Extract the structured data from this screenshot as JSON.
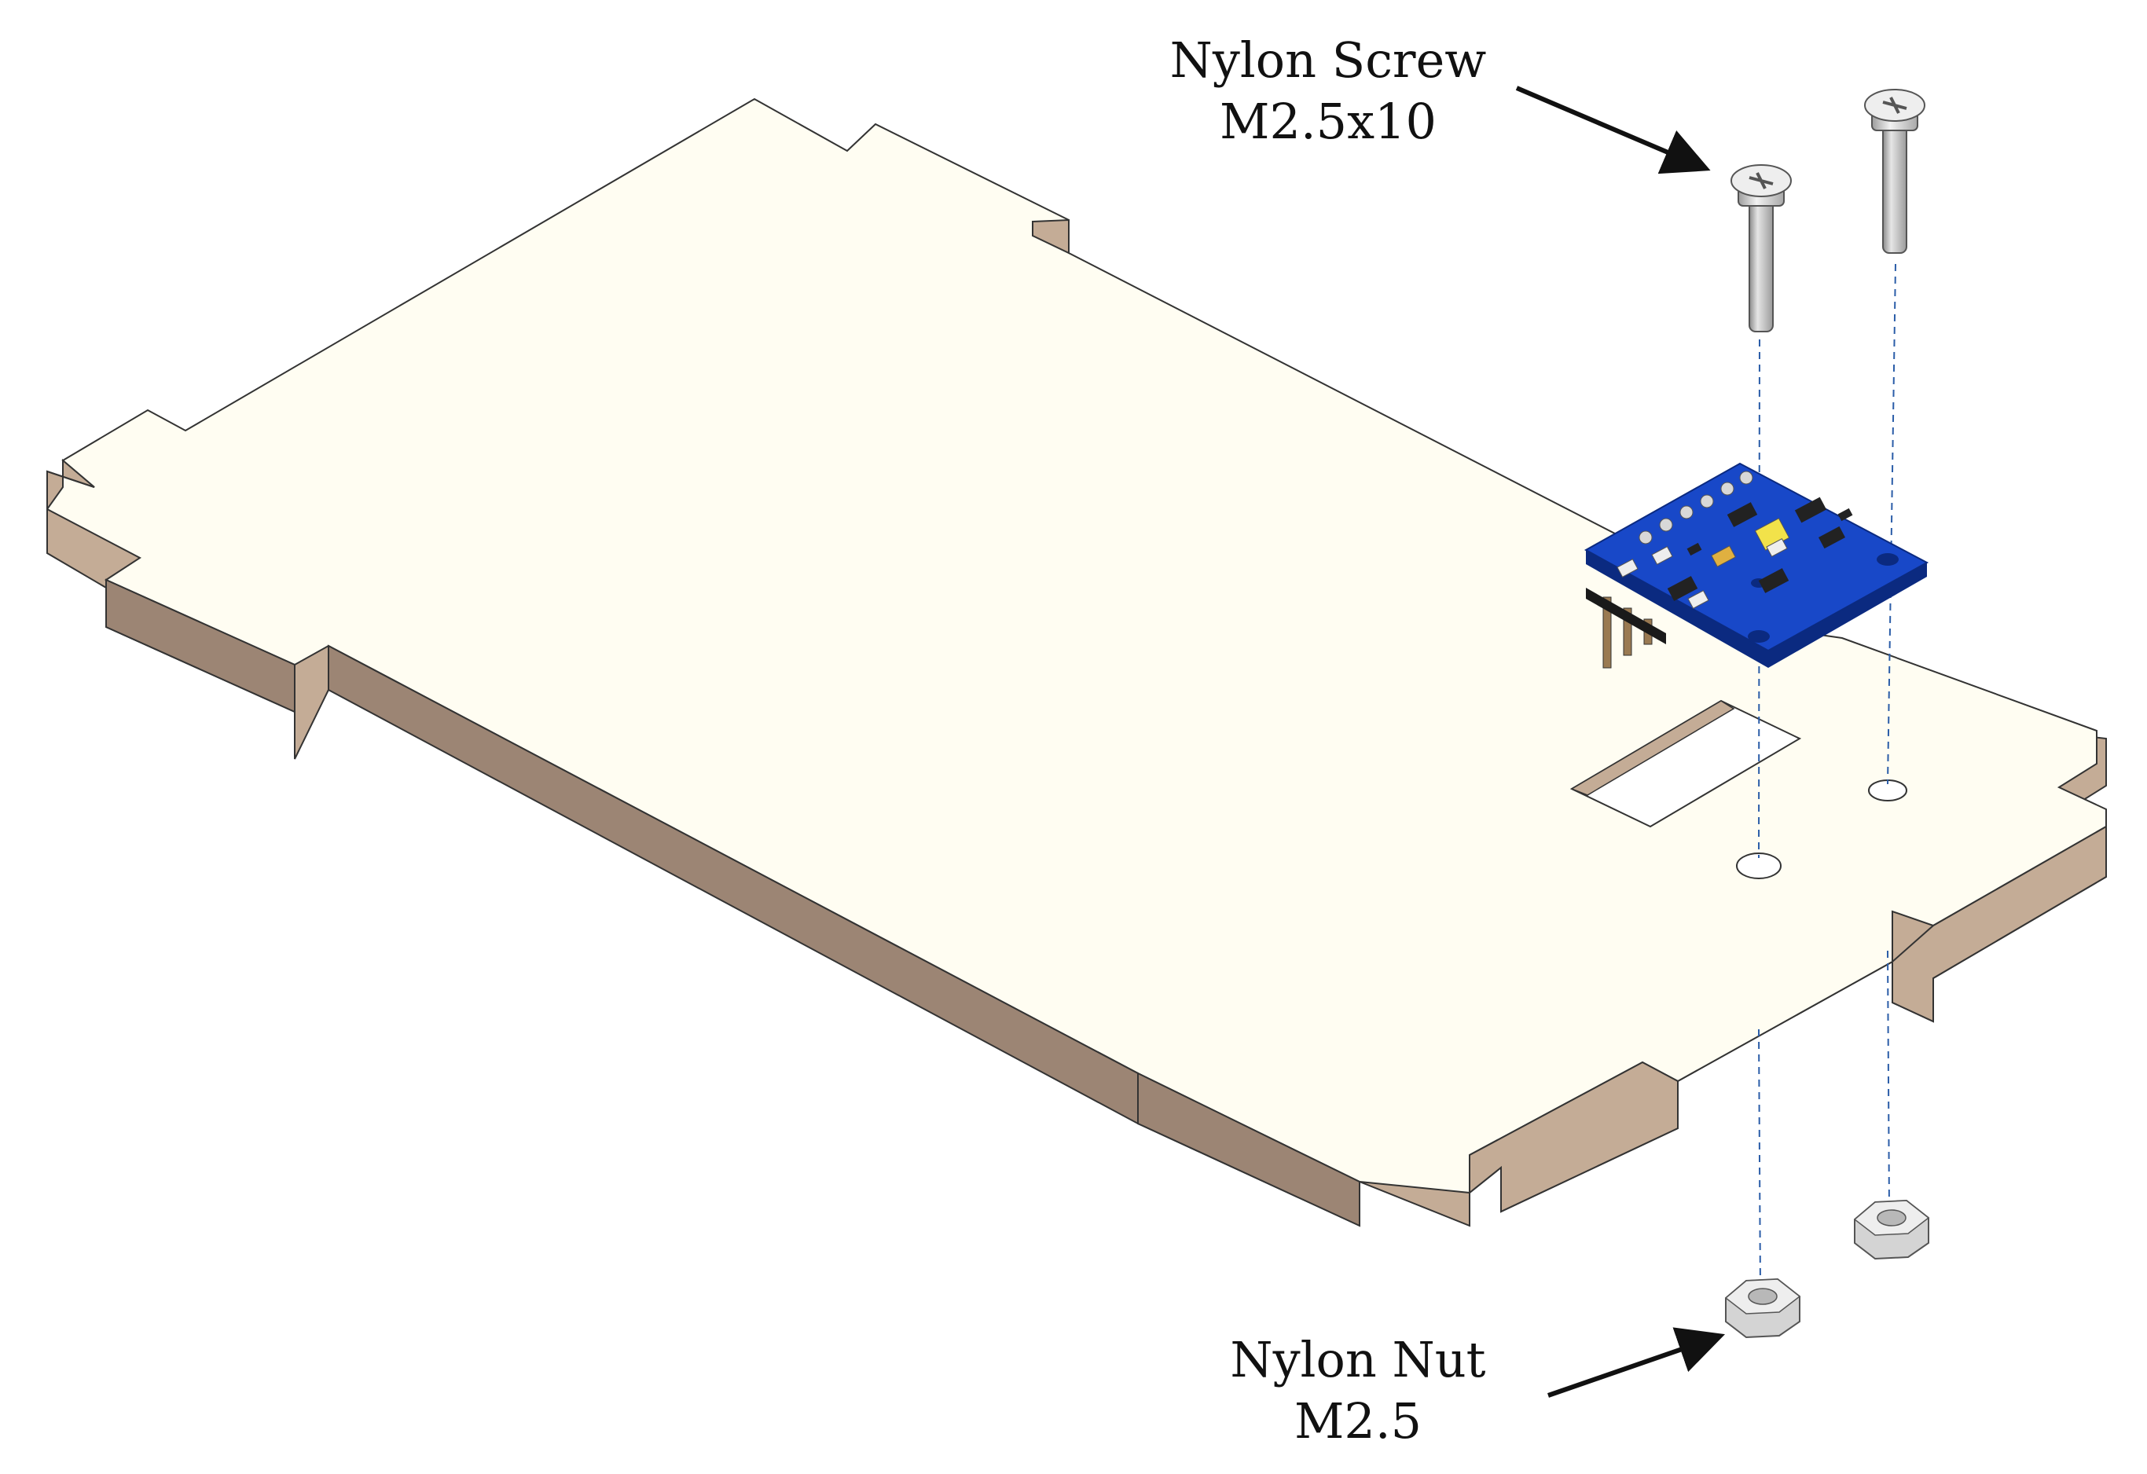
{
  "colors": {
    "plate_top": "#FFFDF2",
    "plate_side": "#C4AC96",
    "plate_front": "#9C8574",
    "outline": "#333333",
    "pcb": "#1848C8",
    "pcb_edge": "#0B2A80",
    "screw": "#C8C8C8",
    "nut": "#D4D4D4",
    "guide": "#2B5DA8",
    "arrow": "#111111"
  },
  "labels": {
    "screw_line1": "Nylon Screw",
    "screw_line2": "M2.5x10",
    "nut_line1": "Nylon Nut",
    "nut_line2": "M2.5"
  },
  "icons": [
    "screw-icon",
    "nut-icon",
    "sensor-board-icon",
    "arrow-icon"
  ]
}
